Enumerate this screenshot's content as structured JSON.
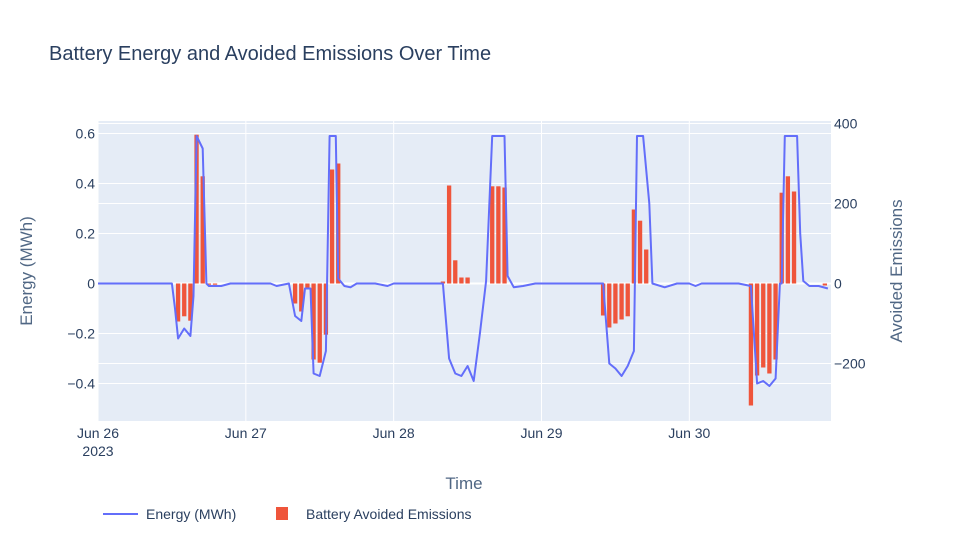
{
  "chart_data": {
    "type": "bar+line",
    "title": "Battery Energy and Avoided Emissions Over Time",
    "xlabel": "Time",
    "ylabel_left": "Energy (MWh)",
    "ylabel_right": "Avoided Emissions",
    "x_ticks": [
      "Jun 26",
      "Jun 27",
      "Jun 28",
      "Jun 29",
      "Jun 30"
    ],
    "x_tick_year": "2023",
    "y_left_ticks": [
      "0.6",
      "0.4",
      "0.2",
      "0",
      "−0.2",
      "−0.4"
    ],
    "y_left_values": [
      0.6,
      0.4,
      0.2,
      0,
      -0.2,
      -0.4
    ],
    "y_right_ticks": [
      "400",
      "200",
      "0",
      "−200"
    ],
    "y_right_values": [
      400,
      200,
      0,
      -200
    ],
    "ylim_left": [
      -0.55,
      0.65
    ],
    "ylim_right": [
      -343.75,
      406.25
    ],
    "x_unit": "hours since Jun 26 2023 00:00",
    "xlim_hours": [
      0,
      119
    ],
    "colors": {
      "line": "#636efa",
      "bar": "#ef553b",
      "plot_bg": "#e5ecf6"
    },
    "legend": {
      "placement": "bottom-left",
      "entries": [
        "Energy (MWh)",
        "Battery Avoided Emissions"
      ]
    },
    "series": [
      {
        "name": "Energy (MWh)",
        "kind": "line",
        "axis": "left",
        "points": [
          [
            0,
            0
          ],
          [
            12,
            0
          ],
          [
            12.5,
            -0.1
          ],
          [
            13,
            -0.22
          ],
          [
            14,
            -0.18
          ],
          [
            15,
            -0.21
          ],
          [
            15.5,
            -0.05
          ],
          [
            16,
            0.59
          ],
          [
            17,
            0.54
          ],
          [
            17.6,
            0.0
          ],
          [
            18,
            -0.01
          ],
          [
            20,
            -0.01
          ],
          [
            21.5,
            0
          ],
          [
            28,
            0
          ],
          [
            29,
            -0.01
          ],
          [
            31,
            0
          ],
          [
            32,
            -0.13
          ],
          [
            33,
            -0.15
          ],
          [
            33.6,
            -0.02
          ],
          [
            34.5,
            -0.02
          ],
          [
            35,
            -0.36
          ],
          [
            36,
            -0.37
          ],
          [
            37,
            -0.27
          ],
          [
            37.6,
            0.59
          ],
          [
            38.6,
            0.59
          ],
          [
            39,
            0.02
          ],
          [
            40,
            -0.01
          ],
          [
            41,
            -0.015
          ],
          [
            42,
            0
          ],
          [
            45,
            0
          ],
          [
            47,
            -0.01
          ],
          [
            48,
            0
          ],
          [
            56,
            0
          ],
          [
            57,
            -0.3
          ],
          [
            58,
            -0.36
          ],
          [
            59,
            -0.37
          ],
          [
            60,
            -0.33
          ],
          [
            61,
            -0.39
          ],
          [
            62,
            -0.2
          ],
          [
            63,
            0.01
          ],
          [
            64,
            0.59
          ],
          [
            66,
            0.59
          ],
          [
            66.5,
            0.03
          ],
          [
            67.5,
            -0.015
          ],
          [
            69,
            -0.01
          ],
          [
            71,
            0
          ],
          [
            82,
            0
          ],
          [
            83,
            -0.32
          ],
          [
            84,
            -0.34
          ],
          [
            85,
            -0.37
          ],
          [
            86,
            -0.33
          ],
          [
            87,
            -0.27
          ],
          [
            87.5,
            0.59
          ],
          [
            88.5,
            0.59
          ],
          [
            89.5,
            0.32
          ],
          [
            90,
            0
          ],
          [
            92,
            -0.015
          ],
          [
            94,
            0
          ],
          [
            96,
            0
          ],
          [
            97,
            -0.01
          ],
          [
            98,
            0
          ],
          [
            104,
            0
          ],
          [
            106,
            -0.01
          ],
          [
            107,
            -0.4
          ],
          [
            108,
            -0.39
          ],
          [
            109,
            -0.41
          ],
          [
            110,
            -0.38
          ],
          [
            110.7,
            0
          ],
          [
            111,
            0
          ],
          [
            111.5,
            0.59
          ],
          [
            113.5,
            0.59
          ],
          [
            114,
            0.2
          ],
          [
            114.5,
            0.01
          ],
          [
            115.5,
            -0.01
          ],
          [
            117,
            -0.01
          ],
          [
            118.5,
            -0.02
          ]
        ]
      },
      {
        "name": "Battery Avoided Emissions",
        "kind": "bar",
        "axis": "right",
        "bar_width_hours": 0.7,
        "points": [
          [
            13,
            -95
          ],
          [
            14,
            -82
          ],
          [
            15,
            -93
          ],
          [
            16,
            372
          ],
          [
            17,
            268
          ],
          [
            18,
            -3
          ],
          [
            19,
            -3
          ],
          [
            32,
            -50
          ],
          [
            33,
            -70
          ],
          [
            34,
            -10
          ],
          [
            35,
            -190
          ],
          [
            36,
            -198
          ],
          [
            37,
            -128
          ],
          [
            38,
            285
          ],
          [
            39,
            300
          ],
          [
            56,
            5
          ],
          [
            57,
            245
          ],
          [
            58,
            58
          ],
          [
            59,
            15
          ],
          [
            60,
            15
          ],
          [
            64,
            243
          ],
          [
            65,
            243
          ],
          [
            66,
            240
          ],
          [
            82,
            -80
          ],
          [
            83,
            -110
          ],
          [
            84,
            -100
          ],
          [
            85,
            -90
          ],
          [
            86,
            -82
          ],
          [
            87,
            185
          ],
          [
            88,
            157
          ],
          [
            89,
            85
          ],
          [
            106,
            -305
          ],
          [
            107,
            -230
          ],
          [
            108,
            -210
          ],
          [
            109,
            -225
          ],
          [
            110,
            -190
          ],
          [
            111,
            227
          ],
          [
            112,
            268
          ],
          [
            113,
            230
          ],
          [
            118,
            -5
          ]
        ]
      }
    ]
  }
}
